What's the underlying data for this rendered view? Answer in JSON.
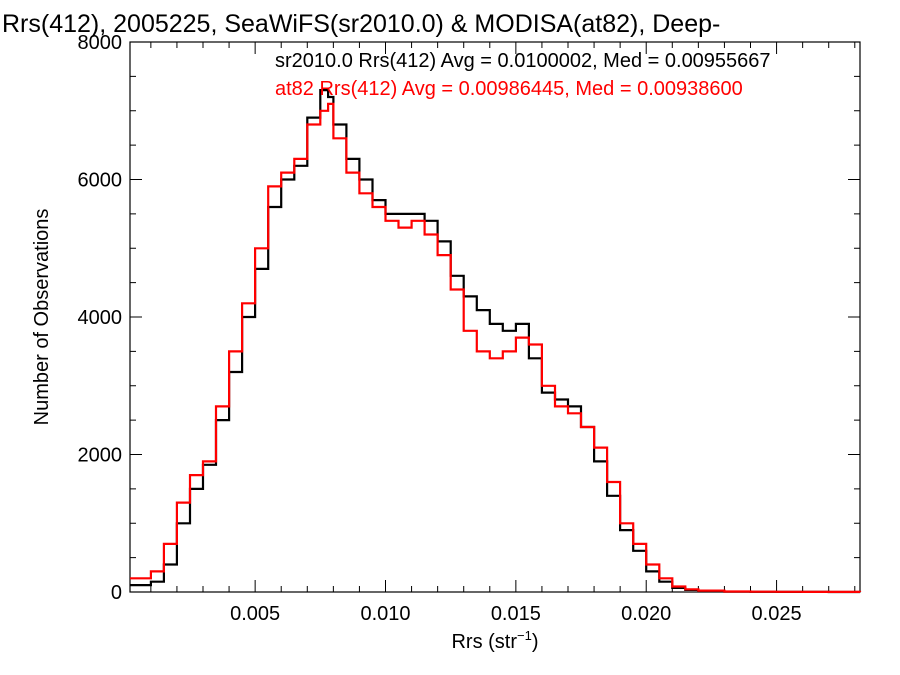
{
  "chart_data": {
    "type": "line",
    "title": "Rrs(412), 2005225, SeaWiFS(sr2010.0) & MODISA(at82), Deep-",
    "xlabel": "Rrs (str",
    "xlabel_sup": "−1",
    "xlabel_close": ")",
    "ylabel": "Number of Observations",
    "xlim": [
      0.0002,
      0.0282
    ],
    "ylim": [
      0,
      8000
    ],
    "xticks": [
      0.005,
      0.01,
      0.015,
      0.02,
      0.025
    ],
    "xtick_labels": [
      "0.005",
      "0.010",
      "0.015",
      "0.020",
      "0.025"
    ],
    "yticks": [
      0,
      2000,
      4000,
      6000,
      8000
    ],
    "ytick_labels": [
      "0",
      "2000",
      "4000",
      "6000",
      "8000"
    ],
    "grid": false,
    "legend_placement": "top-right",
    "series": [
      {
        "name": "sr2010.0 Rrs(412) Avg = 0.0100002, Med = 0.00955667",
        "color": "#000000",
        "x": [
          0.0002,
          0.001,
          0.0015,
          0.002,
          0.0025,
          0.003,
          0.0035,
          0.004,
          0.0045,
          0.005,
          0.0055,
          0.006,
          0.0065,
          0.007,
          0.0075,
          0.0078,
          0.008,
          0.0085,
          0.009,
          0.0095,
          0.01,
          0.0105,
          0.011,
          0.0115,
          0.012,
          0.0125,
          0.013,
          0.0135,
          0.014,
          0.0145,
          0.015,
          0.0155,
          0.016,
          0.0165,
          0.017,
          0.0175,
          0.018,
          0.0185,
          0.019,
          0.0195,
          0.02,
          0.0205,
          0.021,
          0.0215,
          0.022,
          0.023,
          0.024,
          0.025,
          0.026,
          0.027,
          0.0282
        ],
        "y": [
          100,
          150,
          400,
          1000,
          1500,
          1850,
          2500,
          3200,
          4000,
          4700,
          5600,
          6000,
          6200,
          6900,
          7300,
          7200,
          6800,
          6300,
          6000,
          5700,
          5500,
          5500,
          5500,
          5400,
          5100,
          4600,
          4300,
          4100,
          3900,
          3800,
          3900,
          3400,
          2900,
          2800,
          2700,
          2400,
          1900,
          1400,
          900,
          600,
          300,
          150,
          60,
          30,
          15,
          5,
          3,
          2,
          1,
          0,
          0
        ]
      },
      {
        "name": "at82 Rrs(412) Avg = 0.00986445, Med = 0.00938600",
        "color": "#ff0000",
        "x": [
          0.0002,
          0.001,
          0.0015,
          0.002,
          0.0025,
          0.003,
          0.0035,
          0.004,
          0.0045,
          0.005,
          0.0055,
          0.006,
          0.0065,
          0.007,
          0.0075,
          0.0078,
          0.008,
          0.0085,
          0.009,
          0.0095,
          0.01,
          0.0105,
          0.011,
          0.0115,
          0.012,
          0.0125,
          0.013,
          0.0135,
          0.014,
          0.0145,
          0.015,
          0.0155,
          0.016,
          0.0165,
          0.017,
          0.0175,
          0.018,
          0.0185,
          0.019,
          0.0195,
          0.02,
          0.0205,
          0.021,
          0.0215,
          0.022,
          0.023,
          0.024,
          0.025,
          0.026,
          0.027,
          0.0282
        ],
        "y": [
          200,
          300,
          700,
          1300,
          1700,
          1900,
          2700,
          3500,
          4200,
          5000,
          5900,
          6100,
          6300,
          6800,
          7000,
          7100,
          6600,
          6100,
          5800,
          5600,
          5400,
          5300,
          5400,
          5200,
          4900,
          4400,
          3800,
          3500,
          3400,
          3500,
          3700,
          3600,
          3000,
          2700,
          2600,
          2400,
          2100,
          1600,
          1000,
          700,
          400,
          200,
          80,
          40,
          20,
          8,
          5,
          3,
          2,
          1,
          0
        ]
      }
    ]
  }
}
